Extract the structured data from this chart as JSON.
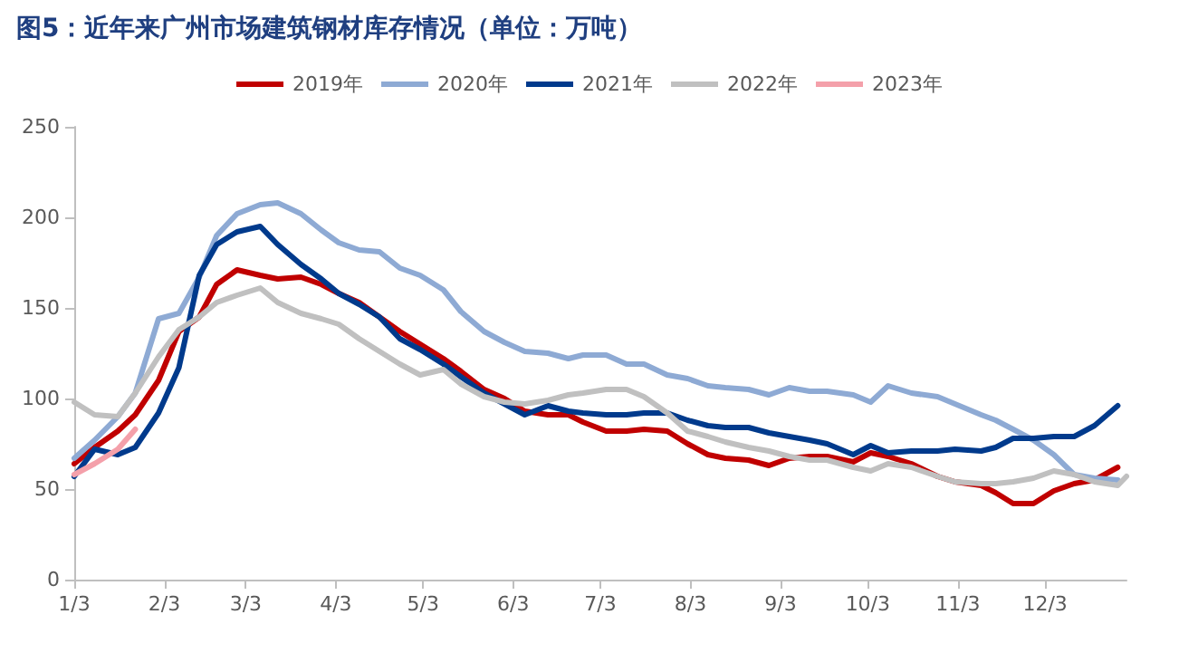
{
  "chart_data": {
    "type": "line",
    "title": "图5：近年来广州市场建筑钢材库存情况（单位：万吨）",
    "x": [
      "--01-03",
      "--01-10",
      "--01-18",
      "--01-24",
      "--02-01",
      "--02-08",
      "--02-15",
      "--02-21",
      "--02-28",
      "--03-08",
      "--03-14",
      "--03-22",
      "--03-29",
      "--04-04",
      "--04-11",
      "--04-18",
      "--04-25",
      "--05-02",
      "--05-10",
      "--05-16",
      "--05-24",
      "--05-31",
      "--06-07",
      "--06-15",
      "--06-22",
      "--06-27",
      "--07-05",
      "--07-12",
      "--07-18",
      "--07-26",
      "--08-02",
      "--08-09",
      "--08-15",
      "--08-23",
      "--08-30",
      "--09-06",
      "--09-13",
      "--09-19",
      "--09-28",
      "--10-04",
      "--10-10",
      "--10-18",
      "--10-27",
      "--11-02",
      "--11-11",
      "--11-16",
      "--11-22",
      "--11-29",
      "--12-06",
      "--12-13",
      "--12-20",
      "--12-28",
      "--12-31"
    ],
    "series": [
      {
        "name": "2019年",
        "color": "#c00000",
        "values": [
          64,
          73,
          82,
          91,
          110,
          137,
          145,
          163,
          171,
          168,
          166,
          167,
          163,
          158,
          153,
          145,
          137,
          130,
          122,
          115,
          105,
          100,
          93,
          91,
          91,
          87,
          82,
          82,
          83,
          82,
          75,
          69,
          67,
          66,
          63,
          67,
          68,
          68,
          65,
          70,
          68,
          64,
          57,
          54,
          52,
          48,
          42,
          42,
          49,
          53,
          55,
          62,
          null
        ]
      },
      {
        "name": "2020年",
        "color": "#8eaad4",
        "values": [
          67,
          77,
          90,
          103,
          144,
          147,
          167,
          190,
          202,
          207,
          208,
          202,
          193,
          186,
          182,
          181,
          172,
          168,
          160,
          148,
          137,
          131,
          126,
          125,
          122,
          124,
          124,
          119,
          119,
          113,
          111,
          107,
          106,
          105,
          102,
          106,
          104,
          104,
          102,
          98,
          107,
          103,
          101,
          97,
          91,
          88,
          83,
          77,
          69,
          58,
          56,
          55,
          null
        ]
      },
      {
        "name": "2021年",
        "color": "#003a8c",
        "values": [
          57,
          72,
          69,
          73,
          92,
          117,
          168,
          185,
          192,
          195,
          185,
          174,
          166,
          158,
          152,
          145,
          133,
          127,
          119,
          112,
          103,
          97,
          91,
          96,
          93,
          92,
          91,
          91,
          92,
          92,
          88,
          85,
          84,
          84,
          81,
          79,
          77,
          75,
          69,
          74,
          70,
          71,
          71,
          72,
          71,
          73,
          78,
          78,
          79,
          79,
          85,
          96,
          null
        ]
      },
      {
        "name": "2022年",
        "color": "#c0c0c0",
        "values": [
          98,
          91,
          90,
          103,
          123,
          138,
          145,
          153,
          157,
          161,
          153,
          147,
          144,
          141,
          133,
          126,
          119,
          113,
          116,
          108,
          101,
          98,
          97,
          99,
          102,
          103,
          105,
          105,
          101,
          92,
          82,
          79,
          76,
          73,
          71,
          68,
          66,
          66,
          62,
          60,
          64,
          62,
          57,
          54,
          53,
          53,
          54,
          56,
          60,
          58,
          54,
          52,
          57
        ]
      },
      {
        "name": "2023年",
        "color": "#f4a0aa",
        "values": [
          58,
          64,
          72,
          83,
          null,
          null,
          null,
          null,
          null,
          null,
          null,
          null,
          null,
          null,
          null,
          null,
          null,
          null,
          null,
          null,
          null,
          null,
          null,
          null,
          null,
          null,
          null,
          null,
          null,
          null,
          null,
          null,
          null,
          null,
          null,
          null,
          null,
          null,
          null,
          null,
          null,
          null,
          null,
          null,
          null,
          null,
          null,
          null,
          null,
          null,
          null,
          null,
          null
        ]
      }
    ],
    "xlim": [
      "--01-03",
      "--12-31"
    ],
    "xticks": [
      {
        "value": "--01-03",
        "label": "1/3"
      },
      {
        "value": "--02-03",
        "label": "2/3"
      },
      {
        "value": "--03-03",
        "label": "3/3"
      },
      {
        "value": "--04-03",
        "label": "4/3"
      },
      {
        "value": "--05-03",
        "label": "5/3"
      },
      {
        "value": "--06-03",
        "label": "6/3"
      },
      {
        "value": "--07-03",
        "label": "7/3"
      },
      {
        "value": "--08-03",
        "label": "8/3"
      },
      {
        "value": "--09-03",
        "label": "9/3"
      },
      {
        "value": "--10-03",
        "label": "10/3"
      },
      {
        "value": "--11-03",
        "label": "11/3"
      },
      {
        "value": "--12-03",
        "label": "12/3"
      }
    ],
    "ylim": [
      0,
      250
    ],
    "yticks": [
      0,
      50,
      100,
      150,
      200,
      250
    ],
    "grid": false,
    "legend": "top",
    "marker": "none",
    "line_style": "solid"
  }
}
